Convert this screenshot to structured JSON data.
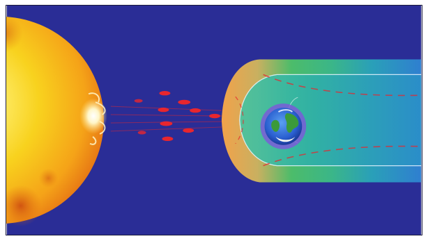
{
  "scene": {
    "colors": {
      "space": "#2a2d96",
      "sun_core": "#fff27a",
      "sun_mid": "#f7c21a",
      "sun_edge": "#e06a10",
      "flare": "#fff6c8",
      "wind_particles": "#e8262e",
      "bow_shock_outer": "#e9a650",
      "magnetosphere_green": "#3fb870",
      "magnetosphere_teal": "#2aa4b4",
      "tail_blue": "#2f7fd0",
      "earth_ocean": "#2a5fd0",
      "earth_land": "#3b9a3a",
      "earth_ring": "#7a5cd8"
    },
    "icons": {
      "sun": "sun-icon",
      "earth": "earth-icon"
    }
  }
}
